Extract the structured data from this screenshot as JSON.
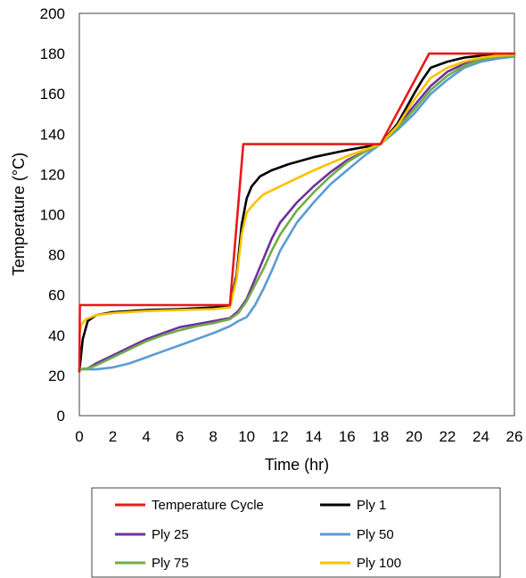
{
  "chart_data": {
    "type": "line",
    "title": "",
    "xlabel": "Time (hr)",
    "ylabel": "Temperature (°C)",
    "xlim": [
      0,
      26
    ],
    "ylim": [
      0,
      200
    ],
    "xticks": [
      0,
      2,
      4,
      6,
      8,
      10,
      12,
      14,
      16,
      18,
      20,
      22,
      24,
      26
    ],
    "yticks": [
      0,
      20,
      40,
      60,
      80,
      100,
      120,
      140,
      160,
      180,
      200
    ],
    "grid": false,
    "legend_position": "bottom",
    "series": [
      {
        "name": "Temperature Cycle",
        "color": "#e8191b",
        "x": [
          0,
          0.03,
          9.0,
          9.8,
          18.0,
          20.9,
          26.0
        ],
        "y": [
          22,
          55,
          55,
          135,
          135,
          180,
          180
        ]
      },
      {
        "name": "Ply 1",
        "color": "#000000",
        "x": [
          0,
          0.2,
          0.5,
          1,
          2,
          4,
          6,
          8,
          9,
          9.4,
          9.7,
          10.0,
          10.3,
          10.8,
          11.5,
          12.5,
          14,
          16,
          18,
          19,
          20,
          20.5,
          21,
          22,
          23,
          24,
          25,
          26
        ],
        "y": [
          22,
          38,
          47,
          50,
          51.5,
          52.5,
          53,
          53.8,
          54.5,
          70,
          95,
          108,
          114,
          119,
          122,
          125,
          128.5,
          132,
          135,
          145,
          160,
          167,
          173,
          176,
          178,
          179,
          179.5,
          179.8
        ]
      },
      {
        "name": "Ply 25",
        "color": "#7030a0",
        "x": [
          0,
          0.5,
          1,
          2,
          3,
          4,
          5,
          6,
          7,
          8,
          9,
          9.5,
          10,
          10.5,
          11,
          11.5,
          12,
          13,
          14,
          15,
          16,
          17,
          18,
          19,
          20,
          21,
          22,
          23,
          24,
          25,
          26
        ],
        "y": [
          23,
          23.5,
          26,
          30,
          34,
          38,
          41,
          44,
          45.5,
          47,
          48.5,
          52,
          58,
          68,
          78,
          88,
          96,
          106,
          114,
          121,
          127,
          131,
          135,
          144,
          154,
          164,
          171,
          175,
          177,
          178.5,
          179
        ]
      },
      {
        "name": "Ply 50",
        "color": "#5b9bd5",
        "x": [
          0,
          0.5,
          1,
          2,
          3,
          4,
          5,
          6,
          7,
          8,
          9,
          9.5,
          10,
          10.5,
          11,
          11.5,
          12,
          13,
          14,
          15,
          16,
          17,
          18,
          19,
          20,
          21,
          22,
          23,
          24,
          25,
          26
        ],
        "y": [
          23,
          23,
          23,
          24,
          26,
          29,
          32,
          35,
          38,
          41,
          44.5,
          47,
          49,
          55,
          63,
          72,
          82,
          96,
          106,
          115,
          122,
          129,
          135,
          142,
          150,
          160,
          167,
          173,
          176,
          177.5,
          178.5
        ]
      },
      {
        "name": "Ply 75",
        "color": "#70ad47",
        "x": [
          0,
          0.5,
          1,
          2,
          3,
          4,
          5,
          6,
          7,
          8,
          9,
          9.5,
          10,
          10.5,
          11,
          11.5,
          12,
          13,
          14,
          15,
          16,
          17,
          18,
          19,
          20,
          21,
          22,
          23,
          24,
          25,
          26
        ],
        "y": [
          23,
          23.5,
          25,
          29,
          33,
          37,
          40,
          42.5,
          44.5,
          46,
          48,
          51,
          57,
          65,
          73,
          82,
          90,
          102,
          111,
          119,
          126,
          131,
          135,
          143,
          152,
          162,
          169,
          174,
          177,
          178.5,
          179
        ]
      },
      {
        "name": "Ply 100",
        "color": "#ffc000",
        "x": [
          0,
          0.1,
          0.4,
          1,
          2,
          4,
          6,
          8,
          9,
          9.4,
          9.7,
          10.0,
          10.5,
          11,
          12,
          14,
          16,
          18,
          19,
          20,
          21,
          22,
          23,
          24,
          25,
          26
        ],
        "y": [
          40,
          45,
          48,
          50,
          51,
          52,
          52.5,
          53,
          53.8,
          68,
          90,
          101,
          106,
          110,
          114,
          122,
          129,
          135,
          144,
          157,
          168,
          173,
          176,
          178,
          179,
          179.5
        ]
      }
    ]
  }
}
